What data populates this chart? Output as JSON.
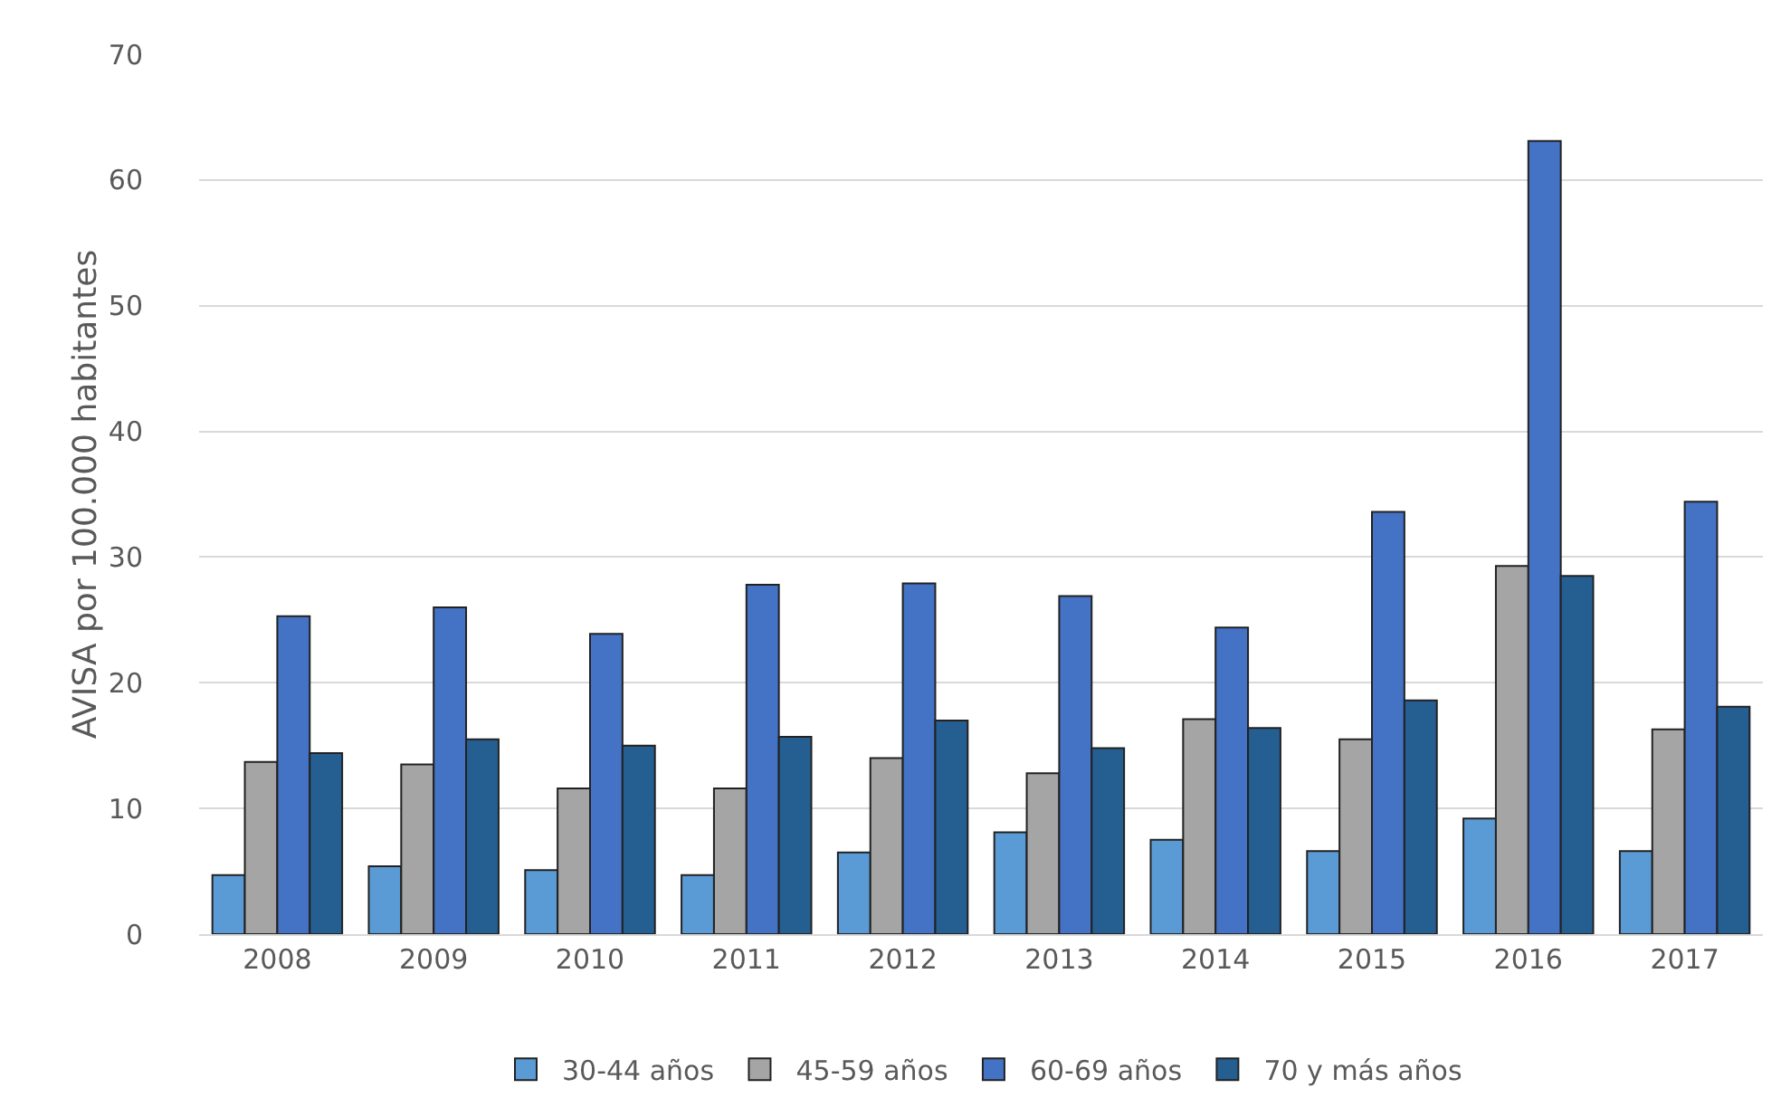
{
  "chart_data": {
    "type": "bar",
    "ylabel": "AVISA por 100.000 habitantes",
    "categories": [
      "2008",
      "2009",
      "2010",
      "2011",
      "2012",
      "2013",
      "2014",
      "2015",
      "2016",
      "2017"
    ],
    "series": [
      {
        "name": "30-44 años",
        "color": "#5b9bd5",
        "values": [
          4.7,
          5.4,
          5.1,
          4.7,
          6.5,
          8.1,
          7.5,
          6.6,
          9.2,
          6.6
        ]
      },
      {
        "name": "45-59 años",
        "color": "#a5a5a5",
        "values": [
          13.7,
          13.5,
          11.6,
          11.6,
          14.0,
          12.8,
          17.1,
          15.5,
          29.3,
          16.3
        ]
      },
      {
        "name": "60-69 años",
        "color": "#4472c4",
        "values": [
          25.3,
          26.0,
          23.9,
          27.8,
          27.9,
          26.9,
          24.4,
          33.6,
          63.1,
          34.4
        ]
      },
      {
        "name": "70 y más años",
        "color": "#255e91",
        "values": [
          14.4,
          15.5,
          15.0,
          15.7,
          17.0,
          14.8,
          16.4,
          18.6,
          28.5,
          18.1
        ]
      }
    ],
    "ylim": [
      0,
      70
    ],
    "yticks": [
      0,
      10,
      20,
      30,
      40,
      50,
      60,
      70
    ],
    "grid": "y",
    "legend": "bottom"
  }
}
